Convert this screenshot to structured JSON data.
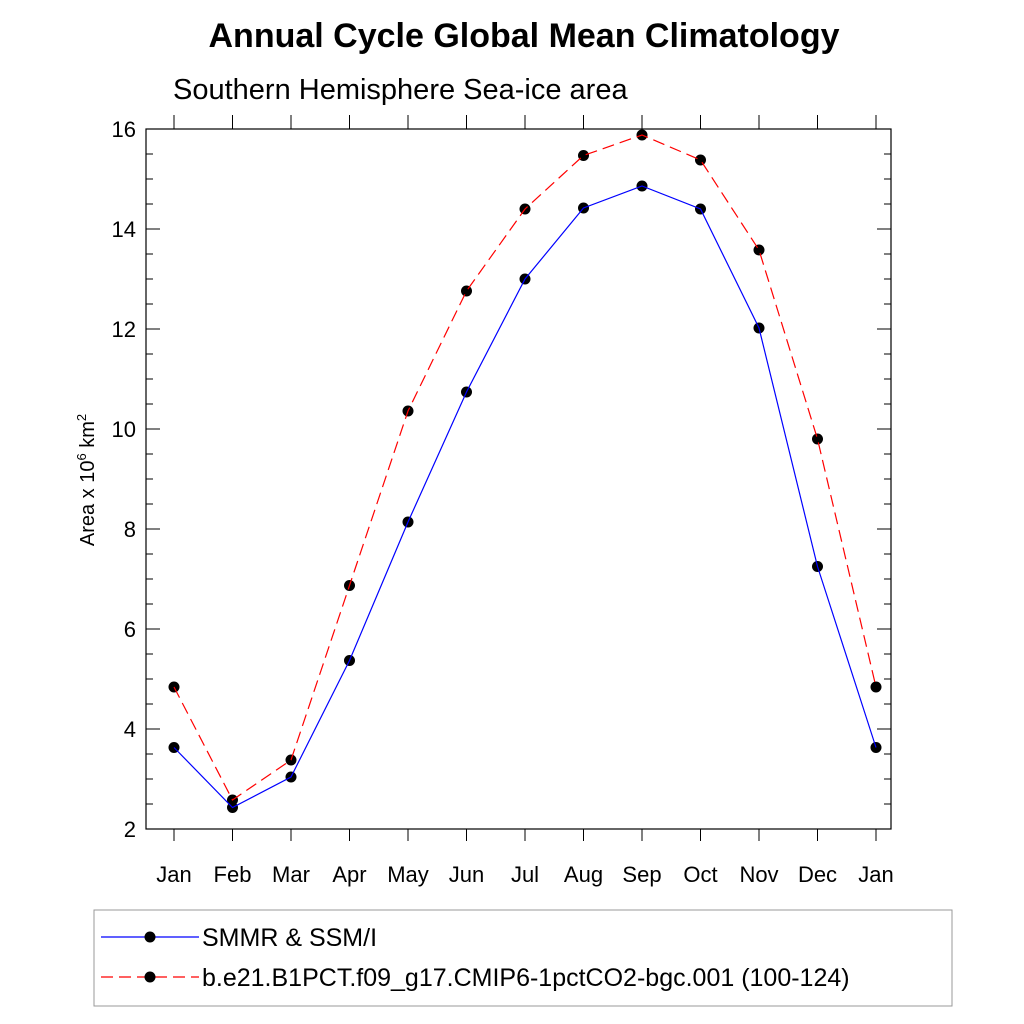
{
  "chart_data": {
    "type": "line",
    "title": "Annual Cycle Global Mean Climatology",
    "subtitle": "Southern Hemisphere Sea-ice area",
    "ylabel": {
      "prefix": "Area x 10",
      "exp1": "6",
      "mid": " km",
      "exp2": "2"
    },
    "xlabel": "",
    "categories": [
      "Jan",
      "Feb",
      "Mar",
      "Apr",
      "May",
      "Jun",
      "Jul",
      "Aug",
      "Sep",
      "Oct",
      "Nov",
      "Dec",
      "Jan"
    ],
    "ylim": [
      2,
      16
    ],
    "yticks": [
      2,
      4,
      6,
      8,
      10,
      12,
      14,
      16
    ],
    "grid": false,
    "legend_position": "bottom",
    "series": [
      {
        "name": "SMMR & SSM/I",
        "color": "#0000ff",
        "dash": "solid",
        "marker": "filled-circle",
        "values": [
          3.63,
          2.43,
          3.04,
          5.37,
          8.14,
          10.74,
          13.0,
          14.42,
          14.86,
          14.4,
          12.02,
          7.25,
          3.63
        ]
      },
      {
        "name": "b.e21.B1PCT.f09_g17.CMIP6-1pctCO2-bgc.001 (100-124)",
        "color": "#ff0000",
        "dash": "dashed",
        "marker": "filled-circle",
        "values": [
          4.84,
          2.58,
          3.38,
          6.87,
          10.36,
          12.76,
          14.4,
          15.47,
          15.88,
          15.38,
          13.58,
          9.8,
          4.84
        ]
      }
    ]
  }
}
